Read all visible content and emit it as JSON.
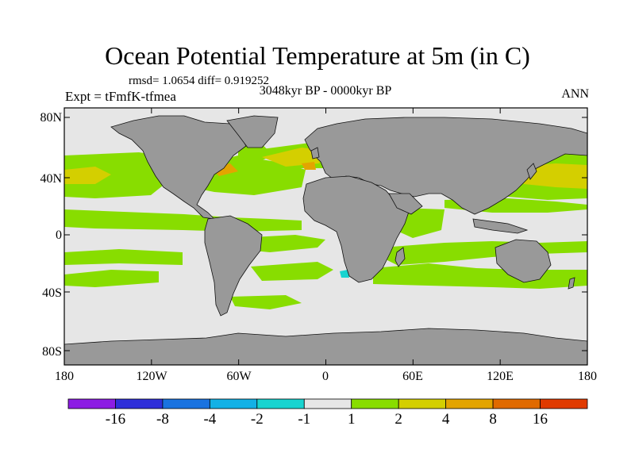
{
  "title": "Ocean Potential Temperature at 5m (in C)",
  "stats": "rmsd= 1.0654 diff= 0.919252",
  "expt": "Expt = tFmfK-tfmea",
  "period": "3048kyr BP - 0000kyr BP",
  "season": "ANN",
  "lat_labels": [
    "80N",
    "40N",
    "0",
    "40S",
    "80S"
  ],
  "lon_labels": [
    "180",
    "120W",
    "60W",
    "0",
    "60E",
    "120E",
    "180"
  ],
  "colorbar": {
    "colors": [
      "#8c1de3",
      "#2f2fd9",
      "#1a73e0",
      "#13b1e6",
      "#19d4d0",
      "#e6e6e6",
      "#88dd00",
      "#d4cf00",
      "#e3a400",
      "#e06a00",
      "#e03a00"
    ],
    "labels": [
      "-16",
      "-8",
      "-4",
      "-2",
      "-1",
      "1",
      "2",
      "4",
      "8",
      "16"
    ]
  },
  "colors": {
    "land": "#999999",
    "ocean_neutral": "#e6e6e6",
    "warm_light": "#88dd00",
    "warm_mid": "#d4cf00",
    "warm_high": "#e3a400",
    "cool": "#19d4d0"
  }
}
